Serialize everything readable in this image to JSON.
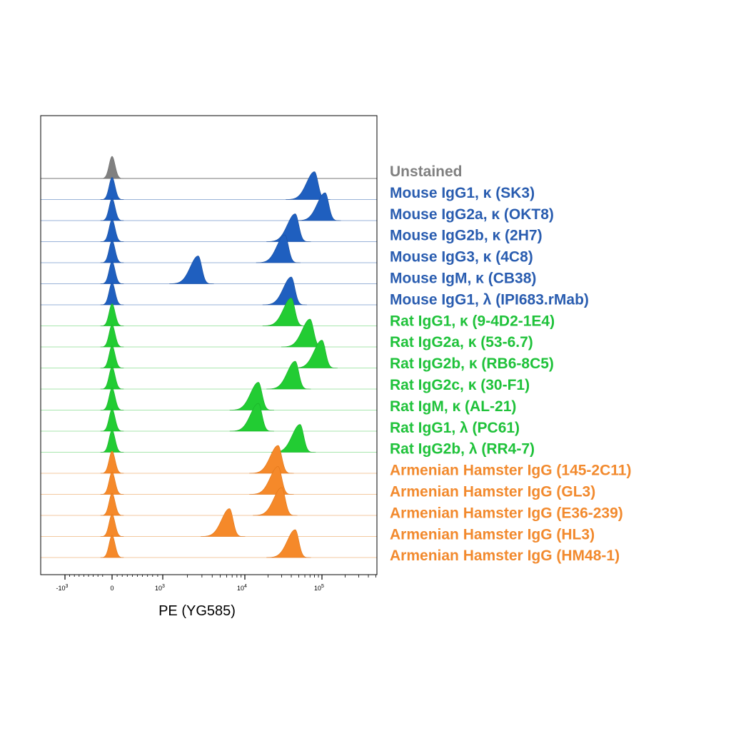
{
  "chart_data": {
    "type": "area",
    "subtype": "stacked flow cytometry histograms (ridgeline)",
    "xlabel": "PE (YG585)",
    "x_scale": "biexponential",
    "x_tick_labels": [
      {
        "base": "-10",
        "exp": "3",
        "value": -1000
      },
      {
        "base": "0",
        "exp": "",
        "value": 0
      },
      {
        "base": "10",
        "exp": "3",
        "value": 1000
      },
      {
        "base": "10",
        "exp": "4",
        "value": 10000
      },
      {
        "base": "10",
        "exp": "5",
        "value": 100000
      }
    ],
    "xlim": [
      -2000,
      260000
    ],
    "grid": false,
    "legend_placement": "right",
    "colors": {
      "unstained": "#808080",
      "mouse": "#1f5fbf",
      "rat": "#22cc33",
      "hamster": "#f5892a"
    },
    "series": [
      {
        "name": "Unstained",
        "group": "unstained",
        "negative_peak": 0,
        "positive_peak": null
      },
      {
        "name": "Mouse IgG1, κ (SK3)",
        "group": "mouse",
        "negative_peak": 0,
        "positive_peak": 80000
      },
      {
        "name": "Mouse IgG2a, κ (OKT8)",
        "group": "mouse",
        "negative_peak": 0,
        "positive_peak": 110000
      },
      {
        "name": "Mouse IgG2b, κ (2H7)",
        "group": "mouse",
        "negative_peak": 0,
        "positive_peak": 45000
      },
      {
        "name": "Mouse IgG3, κ (4C8)",
        "group": "mouse",
        "negative_peak": 0,
        "positive_peak": 33000
      },
      {
        "name": "Mouse IgM, κ (CB38)",
        "group": "mouse",
        "negative_peak": 0,
        "positive_peak": 2700
      },
      {
        "name": "Mouse IgG1, λ (IPI683.rMab)",
        "group": "mouse",
        "negative_peak": 0,
        "positive_peak": 40000
      },
      {
        "name": "Rat IgG1, κ (9-4D2-1E4)",
        "group": "rat",
        "negative_peak": 0,
        "positive_peak": 40000
      },
      {
        "name": "Rat IgG2a, κ (53-6.7)",
        "group": "rat",
        "negative_peak": 0,
        "positive_peak": 70000
      },
      {
        "name": "Rat IgG2b, κ (RB6-8C5)",
        "group": "rat",
        "negative_peak": 0,
        "positive_peak": 100000
      },
      {
        "name": "Rat IgG2c, κ (30-F1)",
        "group": "rat",
        "negative_peak": 0,
        "positive_peak": 45000
      },
      {
        "name": "Rat IgM, κ (AL-21)",
        "group": "rat",
        "negative_peak": 0,
        "positive_peak": 15000
      },
      {
        "name": "Rat IgG1, λ (PC61)",
        "group": "rat",
        "negative_peak": 0,
        "positive_peak": 15000
      },
      {
        "name": "Rat IgG2b, λ (RR4-7)",
        "group": "rat",
        "negative_peak": 0,
        "positive_peak": 52000
      },
      {
        "name": "Armenian Hamster IgG (145-2C11)",
        "group": "hamster",
        "negative_peak": 0,
        "positive_peak": 27000
      },
      {
        "name": "Armenian Hamster IgG (GL3)",
        "group": "hamster",
        "negative_peak": 0,
        "positive_peak": 27000
      },
      {
        "name": "Armenian Hamster IgG (E36-239)",
        "group": "hamster",
        "negative_peak": 0,
        "positive_peak": 30000
      },
      {
        "name": "Armenian Hamster IgG (HL3)",
        "group": "hamster",
        "negative_peak": 0,
        "positive_peak": 6500
      },
      {
        "name": "Armenian Hamster IgG (HM48-1)",
        "group": "hamster",
        "negative_peak": 0,
        "positive_peak": 45000
      }
    ]
  }
}
